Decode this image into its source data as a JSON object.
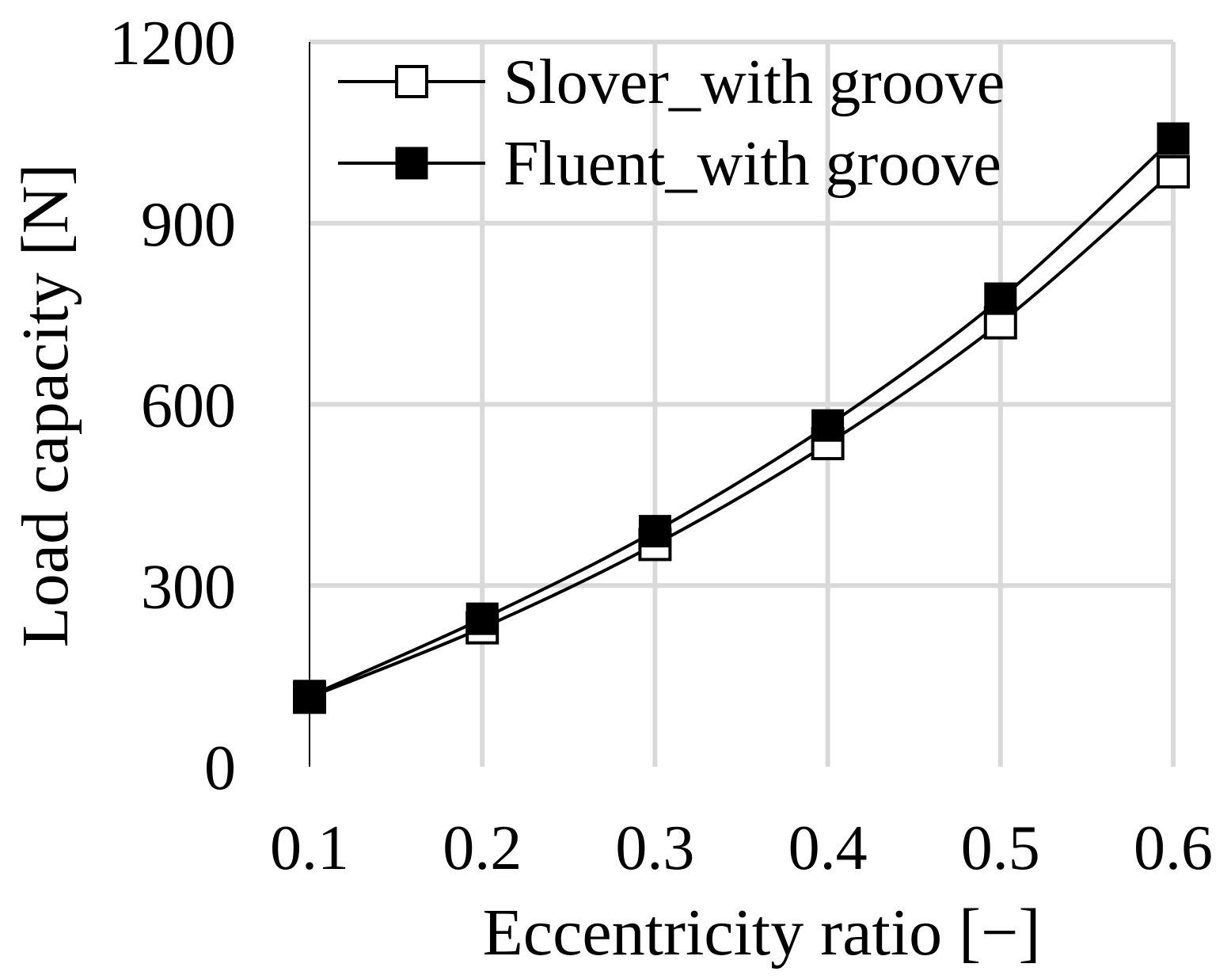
{
  "chart_data": {
    "type": "line",
    "title": "",
    "xlabel": "Eccentricity ratio [−]",
    "ylabel": "Load capacity [N]",
    "x": [
      0.1,
      0.2,
      0.3,
      0.4,
      0.5,
      0.6
    ],
    "x_tick_labels": [
      "0.1",
      "0.2",
      "0.3",
      "0.4",
      "0.5",
      "0.6"
    ],
    "y_ticks": [
      0,
      300,
      600,
      900,
      1200
    ],
    "y_tick_labels": [
      "0",
      "300",
      "600",
      "900",
      "1200"
    ],
    "xlim": [
      0.1,
      0.6
    ],
    "ylim": [
      0,
      1200
    ],
    "grid": true,
    "smooth": true,
    "legend_position": "top-left",
    "colors": {
      "line": "#000000",
      "grid": "#d9d9d9",
      "axis": "#000000",
      "marker_open_fill": "#ffffff",
      "marker_filled_fill": "#000000"
    },
    "series": [
      {
        "name": "Slover_with groove",
        "marker": "open-square",
        "values": [
          115,
          230,
          368,
          535,
          735,
          985
        ]
      },
      {
        "name": "Fluent_with groove",
        "marker": "filled-square",
        "values": [
          117,
          245,
          390,
          565,
          775,
          1040
        ]
      }
    ]
  }
}
